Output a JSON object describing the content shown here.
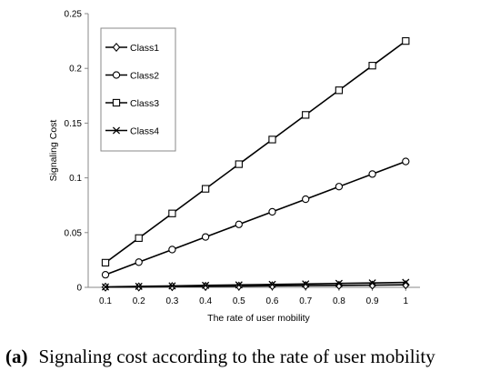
{
  "chart_data": {
    "type": "line",
    "x": [
      0.1,
      0.2,
      0.3,
      0.4,
      0.5,
      0.6,
      0.7,
      0.8,
      0.9,
      1
    ],
    "x_tick_labels": [
      "0.1",
      "0.2",
      "0.3",
      "0.4",
      "0.5",
      "0.6",
      "0.7",
      "0.8",
      "0.9",
      "1"
    ],
    "y_ticks": [
      0,
      0.05,
      0.1,
      0.15,
      0.2,
      0.25
    ],
    "y_tick_labels": [
      "0",
      "0.05",
      "0.1",
      "0.15",
      "0.2",
      "0.25"
    ],
    "ylim": [
      0,
      0.25
    ],
    "xlabel": "The rate of user mobility",
    "ylabel": "Signaling Cost",
    "grid": false,
    "legend_position": "top-left",
    "series": [
      {
        "name": "Class1",
        "marker": "diamond",
        "color": "#000000",
        "values": [
          0.0002,
          0.0004,
          0.0007,
          0.0009,
          0.0011,
          0.0014,
          0.0016,
          0.0018,
          0.002,
          0.0023
        ]
      },
      {
        "name": "Class2",
        "marker": "circle",
        "color": "#000000",
        "values": [
          0.0115,
          0.023,
          0.0345,
          0.046,
          0.0575,
          0.069,
          0.0805,
          0.092,
          0.1035,
          0.115
        ]
      },
      {
        "name": "Class3",
        "marker": "square",
        "color": "#000000",
        "values": [
          0.0225,
          0.045,
          0.0675,
          0.09,
          0.1125,
          0.135,
          0.1575,
          0.18,
          0.2025,
          0.225
        ]
      },
      {
        "name": "Class4",
        "marker": "x",
        "color": "#000000",
        "values": [
          0.0004,
          0.0009,
          0.0013,
          0.0018,
          0.0022,
          0.0027,
          0.0031,
          0.0036,
          0.004,
          0.0045
        ]
      }
    ]
  },
  "caption": {
    "label": "(a)",
    "text": "Signaling cost according to the rate of user mobility"
  }
}
